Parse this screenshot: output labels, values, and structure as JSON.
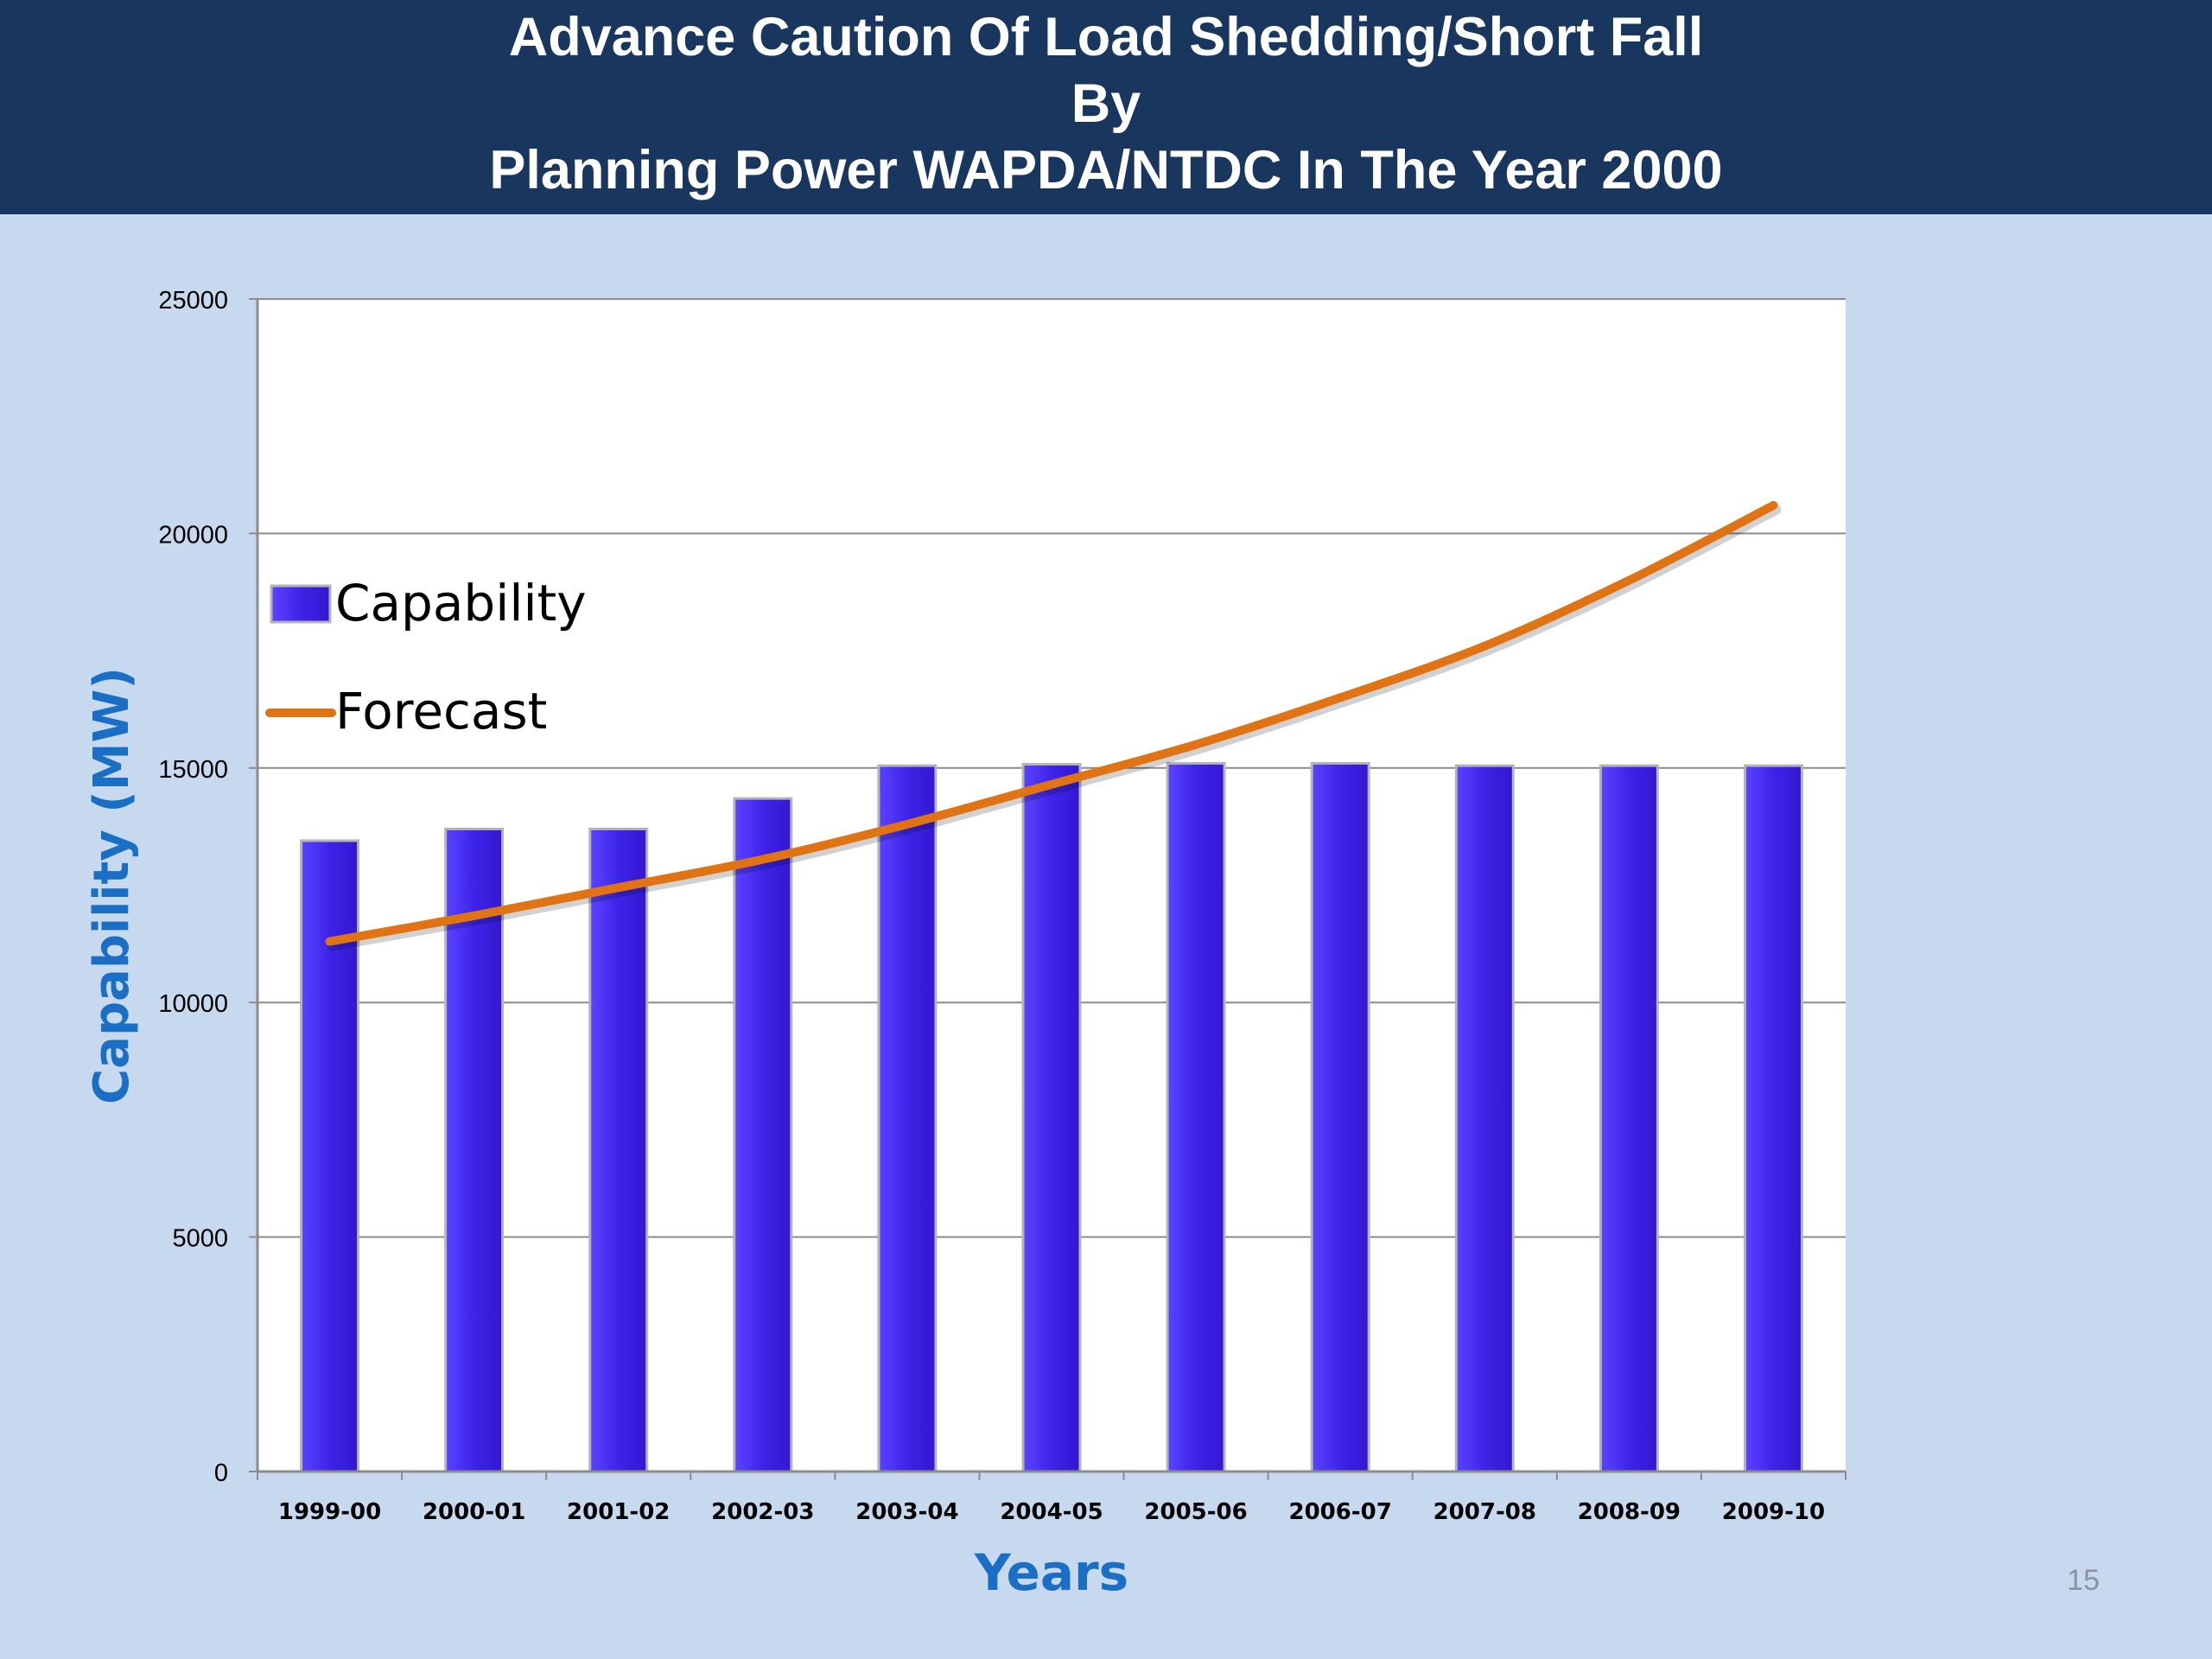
{
  "slide": {
    "title_lines": [
      "Advance Caution Of Load Shedding/Short Fall",
      "By",
      "Planning Power  WAPDA/NTDC In The Year 2000"
    ],
    "page_number": "15"
  },
  "colors": {
    "header_bg": "#19365e",
    "slide_bg": "#c7d9ef",
    "bar": "#3d24e8",
    "line": "#e07314",
    "axis_title": "#1a6fc4"
  },
  "chart_data": {
    "type": "bar",
    "categories": [
      "1999-00",
      "2000-01",
      "2001-02",
      "2002-03",
      "2003-04",
      "2004-05",
      "2005-06",
      "2006-07",
      "2007-08",
      "2008-09",
      "2009-10"
    ],
    "series": [
      {
        "name": "Capability",
        "type": "bar",
        "values": [
          13450,
          13700,
          13700,
          14350,
          15050,
          15080,
          15100,
          15100,
          15050,
          15050,
          15050
        ]
      },
      {
        "name": "Forecast",
        "type": "line",
        "values": [
          11300,
          11850,
          12450,
          13050,
          13800,
          14650,
          15500,
          16500,
          17600,
          19000,
          20600
        ]
      }
    ],
    "xlabel": "Years",
    "ylabel": "Capability (MW)",
    "ylim": [
      0,
      25000
    ],
    "yticks": [
      0,
      5000,
      10000,
      15000,
      20000,
      25000
    ],
    "grid": true,
    "legend": "upper-left"
  }
}
